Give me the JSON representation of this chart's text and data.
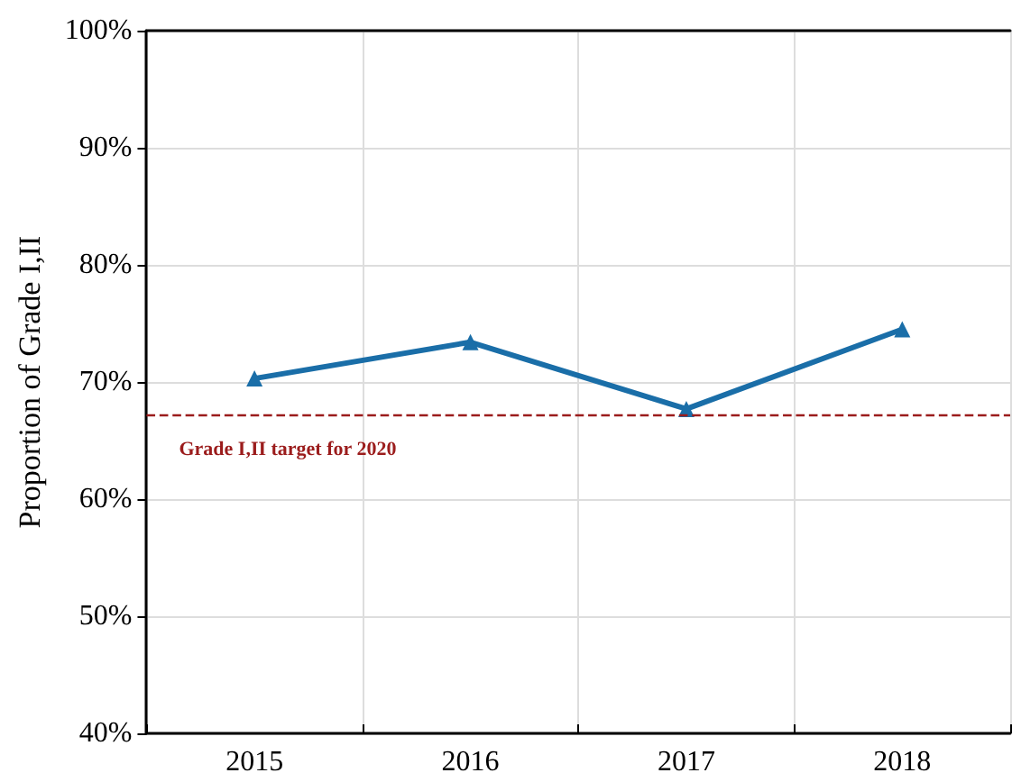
{
  "chart_data": {
    "type": "line",
    "ylabel": "Proportion of Grade I,II",
    "categories": [
      "2015",
      "2016",
      "2017",
      "2018"
    ],
    "series": [
      {
        "color": "#1a6ea8",
        "values": [
          70.3,
          73.4,
          67.7,
          74.5
        ]
      }
    ],
    "ylim": [
      40,
      100
    ],
    "yticks": [
      {
        "value": 40,
        "label": "40%"
      },
      {
        "value": 50,
        "label": "50%"
      },
      {
        "value": 60,
        "label": "60%"
      },
      {
        "value": 70,
        "label": "70%"
      },
      {
        "value": 80,
        "label": "80%"
      },
      {
        "value": 90,
        "label": "90%"
      },
      {
        "value": 100,
        "label": "100%"
      }
    ],
    "ref_lines": [
      {
        "axis": "y",
        "value": 67.2,
        "label": "Grade I,II target for 2020",
        "color": "#9b1c1c",
        "line_style": "dashed"
      }
    ],
    "grid": true,
    "marker": "triangle",
    "line_style": "solid"
  }
}
